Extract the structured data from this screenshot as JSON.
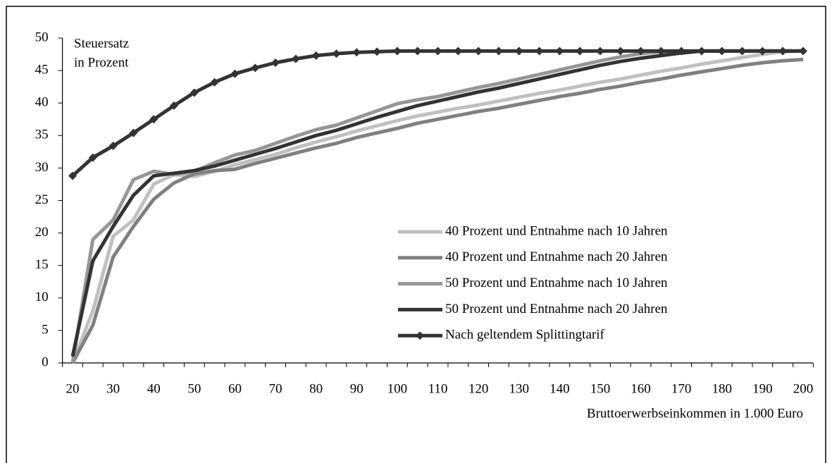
{
  "chart_data": {
    "type": "line",
    "y_label": [
      "Steuersatz",
      "in Prozent"
    ],
    "x_label": "Bruttoerwerbseinkommen in 1.000 Euro",
    "categories": [
      "20",
      null,
      "30",
      null,
      "40",
      null,
      "50",
      null,
      "60",
      null,
      "70",
      null,
      "80",
      null,
      "90",
      null,
      "100",
      null,
      "110",
      null,
      "120",
      null,
      "130",
      null,
      "140",
      null,
      "150",
      null,
      "160",
      null,
      "170",
      null,
      "180",
      null,
      "190",
      null,
      "200"
    ],
    "ylim": [
      0,
      50
    ],
    "yticks": [
      0,
      5,
      10,
      15,
      20,
      25,
      30,
      35,
      40,
      45,
      50
    ],
    "series": [
      {
        "name": "40 Prozent und Entnahme nach 10 Jahren",
        "color": "#c0c0c0",
        "values": [
          0,
          8,
          19.5,
          22,
          27.5,
          29,
          28.7,
          29.5,
          30.5,
          31.3,
          32.1,
          33.1,
          34,
          34.8,
          35.7,
          36.5,
          37.3,
          38,
          38.6,
          39.2,
          39.7,
          40.3,
          40.9,
          41.5,
          42,
          42.6,
          43.2,
          43.7,
          44.3,
          44.9,
          45.4,
          46,
          46.5,
          47,
          47.5,
          47.9,
          48
        ]
      },
      {
        "name": "40 Prozent und Entnahme nach 20 Jahren",
        "color": "#808080",
        "values": [
          0,
          5.8,
          16.3,
          21,
          25.2,
          27.7,
          29.1,
          29.6,
          29.8,
          30.7,
          31.5,
          32.3,
          33.1,
          33.8,
          34.7,
          35.4,
          36.1,
          36.9,
          37.5,
          38.1,
          38.7,
          39.2,
          39.8,
          40.4,
          41,
          41.5,
          42.1,
          42.6,
          43.2,
          43.7,
          44.3,
          44.8,
          45.3,
          45.8,
          46.2,
          46.5,
          46.7
        ]
      },
      {
        "name": "50 Prozent und Entnahme nach 10 Jahren",
        "color": "#969696",
        "values": [
          0,
          19,
          22,
          28.2,
          29.5,
          29,
          29.5,
          30.8,
          32,
          32.7,
          33.8,
          34.9,
          35.9,
          36.6,
          37.7,
          38.8,
          39.9,
          40.5,
          41,
          41.7,
          42.4,
          43,
          43.7,
          44.4,
          45.1,
          45.8,
          46.5,
          47.1,
          47.6,
          47.9,
          48,
          48,
          48,
          48,
          48,
          48,
          48
        ]
      },
      {
        "name": "50 Prozent und Entnahme nach 20 Jahren",
        "color": "#333333",
        "values": [
          1,
          15.7,
          21,
          25.8,
          28.8,
          29.2,
          29.6,
          30.3,
          31.2,
          32.1,
          33,
          34,
          35,
          35.8,
          36.8,
          37.8,
          38.7,
          39.6,
          40.3,
          41,
          41.7,
          42.3,
          43,
          43.7,
          44.4,
          45.1,
          45.8,
          46.4,
          46.9,
          47.3,
          47.7,
          48,
          48,
          48,
          48,
          48,
          48
        ]
      },
      {
        "name": "Nach geltendem Splittingtarif",
        "color": "#333333",
        "marker": "diamond",
        "values": [
          28.8,
          31.6,
          33.4,
          35.4,
          37.5,
          39.6,
          41.6,
          43.2,
          44.5,
          45.4,
          46.2,
          46.8,
          47.3,
          47.6,
          47.8,
          47.9,
          48,
          48,
          48,
          48,
          48,
          48,
          48,
          48,
          48,
          48,
          48,
          48,
          48,
          48,
          48,
          48,
          48,
          48,
          48,
          48,
          48
        ]
      }
    ]
  }
}
